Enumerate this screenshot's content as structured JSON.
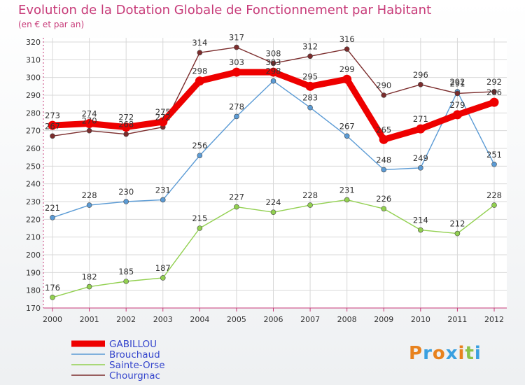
{
  "header": {
    "title": "Evolution de la Dotation Globale de Fonctionnement par Habitant",
    "subtitle": "(en € et par an)"
  },
  "logo": {
    "text": "Proxiti"
  },
  "chart_data": {
    "type": "line",
    "title": "Evolution de la Dotation Globale de Fonctionnement par Habitant",
    "subtitle": "(en € et par an)",
    "xlabel": "",
    "ylabel": "",
    "categories": [
      "2000",
      "2001",
      "2002",
      "2003",
      "2004",
      "2005",
      "2006",
      "2007",
      "2008",
      "2009",
      "2010",
      "2011",
      "2012"
    ],
    "ylim": [
      170,
      320
    ],
    "yticks": [
      170,
      180,
      190,
      200,
      210,
      220,
      230,
      240,
      250,
      260,
      270,
      280,
      290,
      300,
      310,
      320
    ],
    "grid": true,
    "legend": "bottom-left",
    "series": [
      {
        "name": "GABILLOU",
        "color": "#ee0000",
        "values": [
          273,
          274,
          272,
          275,
          298,
          303,
          303,
          295,
          299,
          265,
          271,
          279,
          286
        ]
      },
      {
        "name": "Brouchaud",
        "color": "#5b9bd5",
        "values": [
          221,
          228,
          230,
          231,
          256,
          278,
          298,
          283,
          267,
          248,
          249,
          292,
          251
        ]
      },
      {
        "name": "Sainte-Orse",
        "color": "#92d050",
        "values": [
          176,
          182,
          185,
          187,
          215,
          227,
          224,
          228,
          231,
          226,
          214,
          212,
          228
        ]
      },
      {
        "name": "Chourgnac",
        "color": "#7b2c2c",
        "values": [
          267,
          270,
          268,
          272,
          314,
          317,
          308,
          312,
          316,
          290,
          296,
          291,
          292
        ]
      }
    ]
  }
}
